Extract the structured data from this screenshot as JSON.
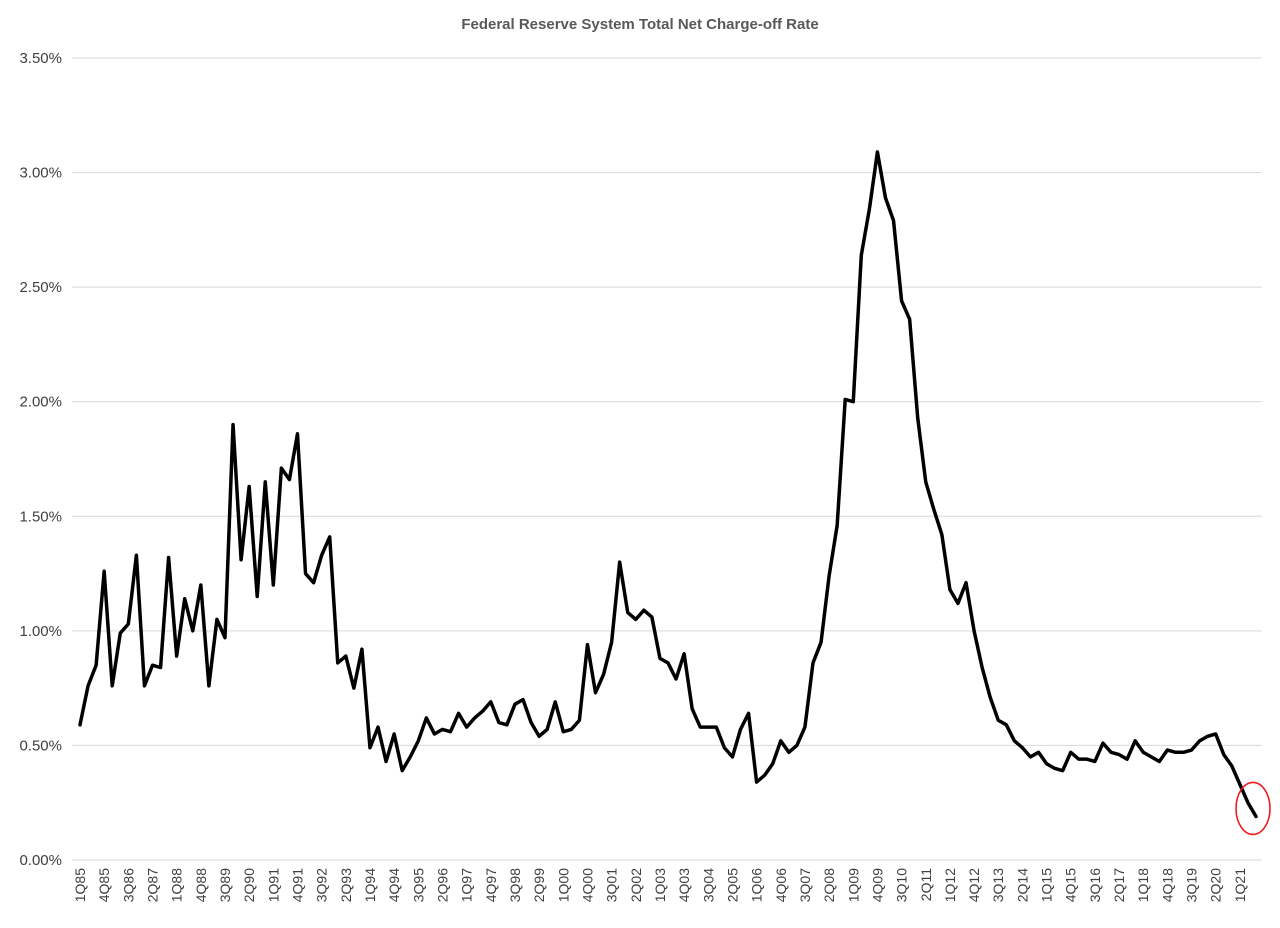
{
  "chart_data": {
    "type": "line",
    "title": "Federal Reserve System Total Net Charge-off Rate",
    "xlabel": "",
    "ylabel": "",
    "ylim": [
      0,
      3.5
    ],
    "yticks": [
      "0.00%",
      "0.50%",
      "1.00%",
      "1.50%",
      "2.00%",
      "2.50%",
      "3.00%",
      "3.50%"
    ],
    "grid": "horizontal",
    "legend": "none",
    "line_color": "#000000",
    "highlight": {
      "shape": "circle",
      "color": "#ee1c1c",
      "target": "last-point"
    },
    "x_tick_labels": [
      "1Q85",
      "4Q85",
      "3Q86",
      "2Q87",
      "1Q88",
      "4Q88",
      "3Q89",
      "2Q90",
      "1Q91",
      "4Q91",
      "3Q92",
      "2Q93",
      "1Q94",
      "4Q94",
      "3Q95",
      "2Q96",
      "1Q97",
      "4Q97",
      "3Q98",
      "2Q99",
      "1Q00",
      "4Q00",
      "3Q01",
      "2Q02",
      "1Q03",
      "4Q03",
      "3Q04",
      "2Q05",
      "1Q06",
      "4Q06",
      "3Q07",
      "2Q08",
      "1Q09",
      "4Q09",
      "3Q10",
      "2Q11",
      "1Q12",
      "4Q12",
      "3Q13",
      "2Q14",
      "1Q15",
      "4Q15",
      "3Q16",
      "2Q17",
      "1Q18",
      "4Q18",
      "3Q19",
      "2Q20",
      "1Q21"
    ],
    "x": [
      "1Q85",
      "2Q85",
      "3Q85",
      "4Q85",
      "1Q86",
      "2Q86",
      "3Q86",
      "4Q86",
      "1Q87",
      "2Q87",
      "3Q87",
      "4Q87",
      "1Q88",
      "2Q88",
      "3Q88",
      "4Q88",
      "1Q89",
      "2Q89",
      "3Q89",
      "4Q89",
      "1Q90",
      "2Q90",
      "3Q90",
      "4Q90",
      "1Q91",
      "2Q91",
      "3Q91",
      "4Q91",
      "1Q92",
      "2Q92",
      "3Q92",
      "4Q92",
      "1Q93",
      "2Q93",
      "3Q93",
      "4Q93",
      "1Q94",
      "2Q94",
      "3Q94",
      "4Q94",
      "1Q95",
      "2Q95",
      "3Q95",
      "4Q95",
      "1Q96",
      "2Q96",
      "3Q96",
      "4Q96",
      "1Q97",
      "2Q97",
      "3Q97",
      "4Q97",
      "1Q98",
      "2Q98",
      "3Q98",
      "4Q98",
      "1Q99",
      "2Q99",
      "3Q99",
      "4Q99",
      "1Q00",
      "2Q00",
      "3Q00",
      "4Q00",
      "1Q01",
      "2Q01",
      "3Q01",
      "4Q01",
      "1Q02",
      "2Q02",
      "3Q02",
      "4Q02",
      "1Q03",
      "2Q03",
      "3Q03",
      "4Q03",
      "1Q04",
      "2Q04",
      "3Q04",
      "4Q04",
      "1Q05",
      "2Q05",
      "3Q05",
      "4Q05",
      "1Q06",
      "2Q06",
      "3Q06",
      "4Q06",
      "1Q07",
      "2Q07",
      "3Q07",
      "4Q07",
      "1Q08",
      "2Q08",
      "3Q08",
      "4Q08",
      "1Q09",
      "2Q09",
      "3Q09",
      "4Q09",
      "1Q10",
      "2Q10",
      "3Q10",
      "4Q10",
      "1Q11",
      "2Q11",
      "3Q11",
      "4Q11",
      "1Q12",
      "2Q12",
      "3Q12",
      "4Q12",
      "1Q13",
      "2Q13",
      "3Q13",
      "4Q13",
      "1Q14",
      "2Q14",
      "3Q14",
      "4Q14",
      "1Q15",
      "2Q15",
      "3Q15",
      "4Q15",
      "1Q16",
      "2Q16",
      "3Q16",
      "4Q16",
      "1Q17",
      "2Q17",
      "3Q17",
      "4Q17",
      "1Q18",
      "2Q18",
      "3Q18",
      "4Q18",
      "1Q19",
      "2Q19",
      "3Q19",
      "4Q19",
      "1Q20",
      "2Q20",
      "3Q20",
      "4Q20",
      "1Q21",
      "2Q21",
      "3Q21"
    ],
    "values": [
      0.59,
      0.76,
      0.85,
      1.26,
      0.76,
      0.99,
      1.03,
      1.33,
      0.76,
      0.85,
      0.84,
      1.32,
      0.89,
      1.14,
      1.0,
      1.2,
      0.76,
      1.05,
      0.97,
      1.9,
      1.31,
      1.63,
      1.15,
      1.65,
      1.2,
      1.71,
      1.66,
      1.86,
      1.25,
      1.21,
      1.33,
      1.41,
      0.86,
      0.89,
      0.75,
      0.92,
      0.49,
      0.58,
      0.43,
      0.55,
      0.39,
      0.45,
      0.52,
      0.62,
      0.55,
      0.57,
      0.56,
      0.64,
      0.58,
      0.62,
      0.65,
      0.69,
      0.6,
      0.59,
      0.68,
      0.7,
      0.6,
      0.54,
      0.57,
      0.69,
      0.56,
      0.57,
      0.61,
      0.94,
      0.73,
      0.81,
      0.95,
      1.3,
      1.08,
      1.05,
      1.09,
      1.06,
      0.88,
      0.86,
      0.79,
      0.9,
      0.66,
      0.58,
      0.58,
      0.58,
      0.49,
      0.45,
      0.57,
      0.64,
      0.34,
      0.37,
      0.42,
      0.52,
      0.47,
      0.5,
      0.58,
      0.86,
      0.95,
      1.24,
      1.46,
      2.01,
      2.0,
      2.64,
      2.84,
      3.09,
      2.89,
      2.79,
      2.44,
      2.36,
      1.93,
      1.65,
      1.53,
      1.42,
      1.18,
      1.12,
      1.21,
      1.0,
      0.84,
      0.71,
      0.61,
      0.59,
      0.52,
      0.49,
      0.45,
      0.47,
      0.42,
      0.4,
      0.39,
      0.47,
      0.44,
      0.44,
      0.43,
      0.51,
      0.47,
      0.46,
      0.44,
      0.52,
      0.47,
      0.45,
      0.43,
      0.48,
      0.47,
      0.47,
      0.48,
      0.52,
      0.54,
      0.55,
      0.46,
      0.41,
      0.33,
      0.25,
      0.19
    ]
  }
}
